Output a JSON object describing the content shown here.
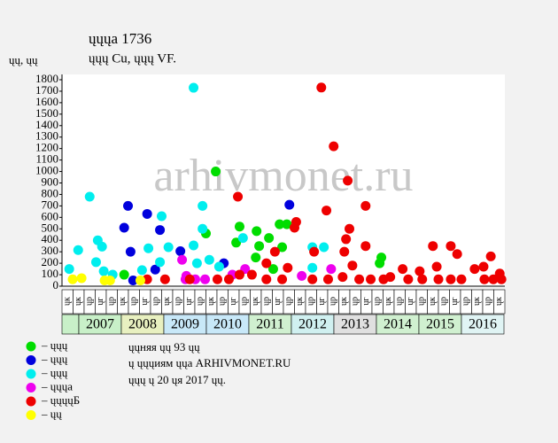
{
  "chart_data": {
    "type": "scatter",
    "title": "ųųųа 1736",
    "subtitle": "ųųų Cu, ųųų VF.",
    "y_label": "ųų, ųų",
    "watermark": "arhivmonet.ru",
    "xlim": [
      2006.6,
      2017.0
    ],
    "ylim": [
      0,
      1800
    ],
    "yticks": [
      0,
      100,
      200,
      300,
      400,
      500,
      600,
      700,
      800,
      900,
      1000,
      1100,
      1200,
      1300,
      1400,
      1500,
      1600,
      1700,
      1800
    ],
    "years": [
      "2007",
      "2008",
      "2009",
      "2010",
      "2011",
      "2012",
      "2013",
      "2014",
      "2015",
      "2016"
    ],
    "year_colors": [
      "#c8f0c8",
      "#e8f0c0",
      "#c8e8f8",
      "#c8e8f8",
      "#d0f0d0",
      "#d0f0f0",
      "#e0e0e0",
      "#d0f0d0",
      "#d0f0d0",
      "#e0f4f4"
    ],
    "sub_labels": [
      "ųк",
      "ųк",
      "ųр",
      "ųг",
      "ųр",
      "ųк",
      "ųр",
      "ųг",
      "ųр",
      "ųк",
      "ųр",
      "ųг",
      "ųр",
      "ųк",
      "ųр",
      "ųг",
      "ųр",
      "ųк",
      "ųр",
      "ųг",
      "ųр",
      "ųк",
      "ųр",
      "ųг",
      "ųр",
      "ųк",
      "ųр",
      "ųг",
      "ųр",
      "ųк",
      "ųр",
      "ųг",
      "ųр",
      "ųк",
      "ųр",
      "ųг",
      "ųр",
      "ųк",
      "ųр",
      "ųк"
    ],
    "notes": [
      "ųųняя ųų 93 ųų",
      "ų ųųųиям ųųа ARHIVMONET.RU",
      "ųųų ų 20 ųя 2017 ųų."
    ],
    "series": [
      {
        "name": "– ųųų",
        "color": "#00dd00",
        "x": [
          2008.06,
          2010.21,
          2009.98,
          2010.77,
          2010.69,
          2011.17,
          2011.23,
          2011.15,
          2011.46,
          2011.71,
          2011.77,
          2011.88,
          2014.06,
          2014.1,
          2011.56
        ],
        "values": [
          100,
          1000,
          460,
          520,
          380,
          480,
          350,
          250,
          420,
          540,
          340,
          540,
          200,
          250,
          150
        ]
      },
      {
        "name": "– ųųų",
        "color": "#0000dd",
        "x": [
          2008.15,
          2008.06,
          2008.21,
          2008.27,
          2008.6,
          2008.79,
          2008.9,
          2009.38,
          2010.4,
          2011.94
        ],
        "values": [
          700,
          510,
          300,
          50,
          630,
          145,
          490,
          305,
          200,
          710
        ]
      },
      {
        "name": "– ųųų",
        "color": "#00eeee",
        "x": [
          2006.77,
          2006.98,
          2007.25,
          2007.4,
          2007.44,
          2007.54,
          2007.58,
          2007.79,
          2008.48,
          2008.63,
          2008.9,
          2008.94,
          2009.1,
          2009.69,
          2009.69,
          2009.77,
          2009.9,
          2009.9,
          2010.06,
          2010.29,
          2010.85,
          2012.48,
          2012.75,
          2012.48
        ],
        "values": [
          150,
          315,
          780,
          210,
          400,
          345,
          130,
          100,
          140,
          330,
          210,
          610,
          340,
          1730,
          355,
          200,
          700,
          500,
          230,
          170,
          420,
          340,
          340,
          160
        ]
      },
      {
        "name": "– ųųųа",
        "color": "#ee00ee",
        "x": [
          2009.42,
          2009.5,
          2009.73,
          2009.96,
          2010.6,
          2010.9,
          2012.23,
          2012.92,
          2009.52
        ],
        "values": [
          230,
          60,
          60,
          60,
          100,
          150,
          90,
          150,
          90
        ]
      },
      {
        "name": "– ųųųųБ",
        "color": "#ee0000",
        "x": [
          2012.69,
          2012.98,
          2013.31,
          2010.73,
          2013.73,
          2012.81,
          2012.1,
          2012.06,
          2013.35,
          2013.27,
          2013.73,
          2015.31,
          2015.73,
          2012.52,
          2013.23,
          2011.6,
          2015.88,
          2016.67,
          2011.4,
          2013.42,
          2015.4,
          2016.5,
          2011.9,
          2016.29,
          2014.6,
          2015.0,
          2016.88,
          2010.77,
          2011.06,
          2014.31,
          2013.19,
          2008.6,
          2009.02,
          2009.6,
          2010.25,
          2010.52,
          2011.4,
          2011.77,
          2012.48,
          2012.85,
          2013.58,
          2013.85,
          2014.15,
          2014.73,
          2015.06,
          2015.44,
          2015.73,
          2015.98,
          2016.52,
          2016.73,
          2016.92
        ],
        "values": [
          1732,
          1220,
          920,
          780,
          700,
          660,
          560,
          510,
          500,
          410,
          350,
          350,
          350,
          300,
          300,
          300,
          280,
          260,
          200,
          180,
          170,
          170,
          160,
          150,
          150,
          130,
          110,
          100,
          100,
          80,
          80,
          60,
          60,
          60,
          60,
          60,
          60,
          60,
          60,
          60,
          60,
          60,
          60,
          60,
          60,
          60,
          60,
          60,
          60,
          60,
          60
        ]
      },
      {
        "name": "– ųų",
        "color": "#ffff00",
        "x": [
          2006.85,
          2007.06,
          2007.6,
          2007.73,
          2008.44
        ],
        "values": [
          60,
          70,
          50,
          50,
          50
        ]
      }
    ]
  }
}
